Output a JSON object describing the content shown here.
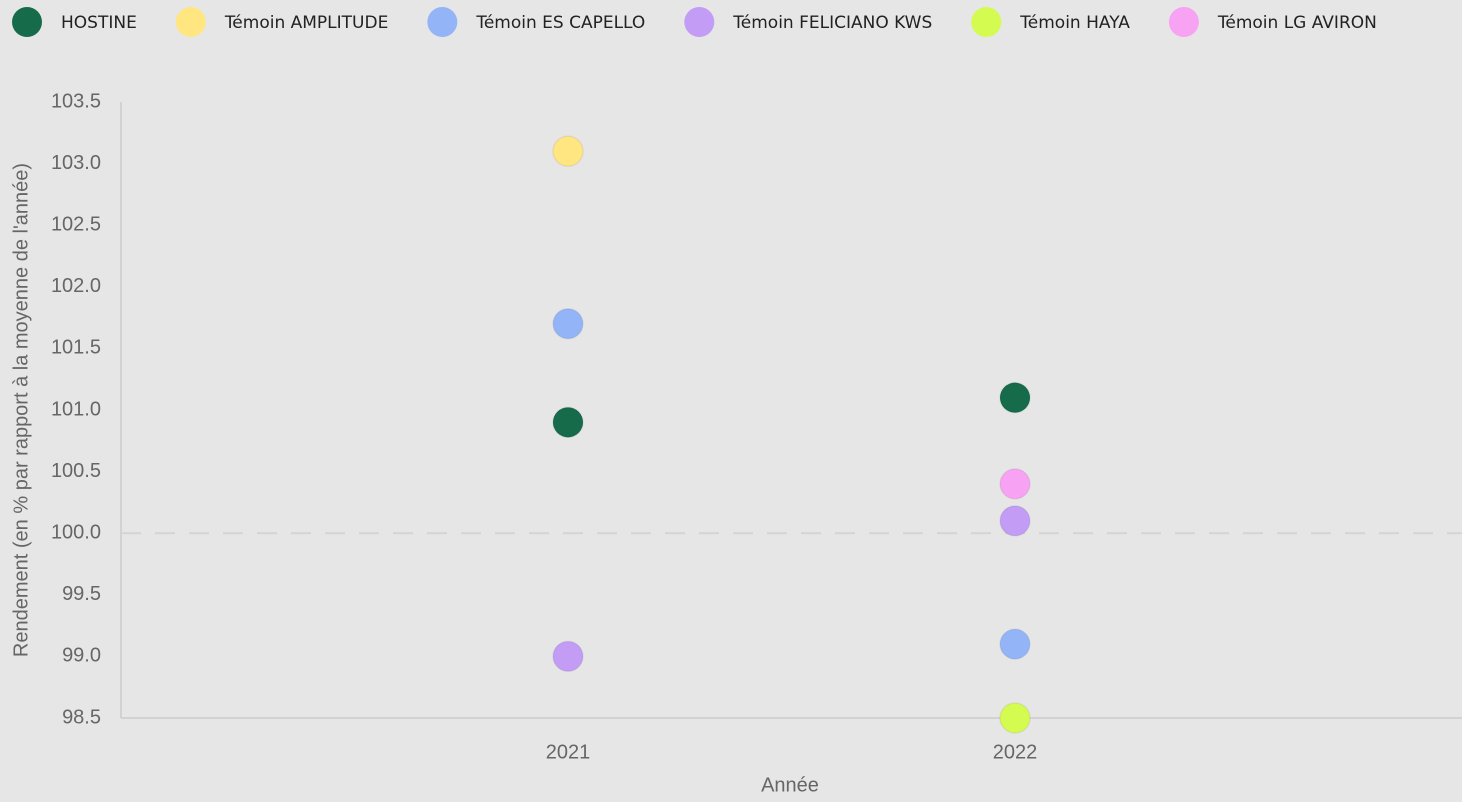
{
  "chart_data": {
    "type": "dot",
    "x_label": "Année",
    "y_label": "Rendement (en % par rapport à la moyenne de l'année)",
    "categories": [
      "2021",
      "2022"
    ],
    "series": [
      {
        "name": "HOSTINE",
        "color": "#166b4a",
        "values": [
          100.9,
          101.1
        ]
      },
      {
        "name": "Témoin AMPLITUDE",
        "color": "#ffe680",
        "values": [
          103.1,
          null
        ]
      },
      {
        "name": "Témoin ES CAPELLO",
        "color": "#93b5f7",
        "values": [
          101.7,
          99.1
        ]
      },
      {
        "name": "Témoin FELICIANO KWS",
        "color": "#c39cf5",
        "values": [
          99.0,
          100.1
        ]
      },
      {
        "name": "Témoin HAYA",
        "color": "#d4fb50",
        "values": [
          null,
          98.5
        ]
      },
      {
        "name": "Témoin LG AVIRON",
        "color": "#f7a2f2",
        "values": [
          null,
          100.4
        ]
      }
    ],
    "ylim": [
      98.5,
      103.5
    ],
    "yticks": [
      98.5,
      {
        "value": 99,
        "label": "99.0"
      },
      99.5,
      {
        "value": 100,
        "label": "100.0"
      },
      100.5,
      {
        "value": 101,
        "label": "101.0"
      },
      101.5,
      {
        "value": 102,
        "label": "102.0"
      },
      102.5,
      {
        "value": 103,
        "label": "103.0"
      },
      103.5
    ],
    "reference_line": 100,
    "legend": "top"
  }
}
